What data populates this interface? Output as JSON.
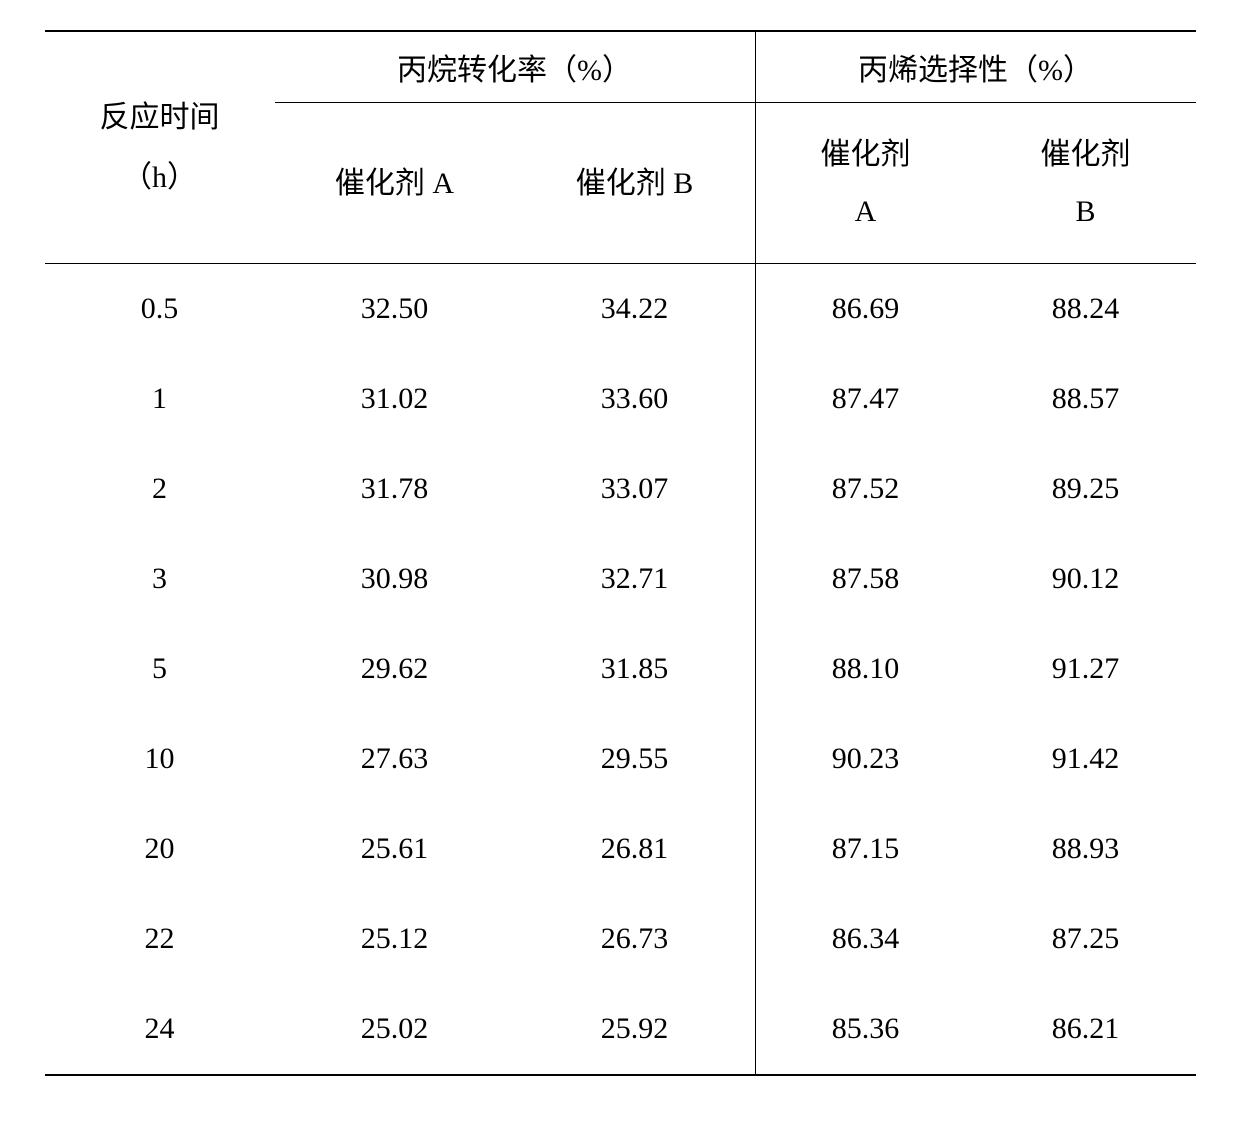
{
  "table": {
    "type": "table",
    "background_color": "#ffffff",
    "text_color": "#000000",
    "border_color": "#000000",
    "font_family": "SimSun",
    "font_size_pt": 22,
    "headers": {
      "row1": {
        "time_label_line1": "反应时间",
        "time_label_line2": "（h）",
        "conversion_label": "丙烷转化率（%）",
        "selectivity_label": "丙烯选择性（%）"
      },
      "row2": {
        "catalyst_a": "催化剂 A",
        "catalyst_b": "催化剂 B",
        "catalyst_a_line1": "催化剂",
        "catalyst_a_line2": "A",
        "catalyst_b_line1": "催化剂",
        "catalyst_b_line2": "B"
      }
    },
    "columns": [
      "反应时间（h）",
      "催化剂 A 转化率",
      "催化剂 B 转化率",
      "催化剂 A 选择性",
      "催化剂 B 选择性"
    ],
    "rows": [
      {
        "time": "0.5",
        "conv_a": "32.50",
        "conv_b": "34.22",
        "sel_a": "86.69",
        "sel_b": "88.24"
      },
      {
        "time": "1",
        "conv_a": "31.02",
        "conv_b": "33.60",
        "sel_a": "87.47",
        "sel_b": "88.57"
      },
      {
        "time": "2",
        "conv_a": "31.78",
        "conv_b": "33.07",
        "sel_a": "87.52",
        "sel_b": "89.25"
      },
      {
        "time": "3",
        "conv_a": "30.98",
        "conv_b": "32.71",
        "sel_a": "87.58",
        "sel_b": "90.12"
      },
      {
        "time": "5",
        "conv_a": "29.62",
        "conv_b": "31.85",
        "sel_a": "88.10",
        "sel_b": "91.27"
      },
      {
        "time": "10",
        "conv_a": "27.63",
        "conv_b": "29.55",
        "sel_a": "90.23",
        "sel_b": "91.42"
      },
      {
        "time": "20",
        "conv_a": "25.61",
        "conv_b": "26.81",
        "sel_a": "87.15",
        "sel_b": "88.93"
      },
      {
        "time": "22",
        "conv_a": "25.12",
        "conv_b": "26.73",
        "sel_a": "86.34",
        "sel_b": "87.25"
      },
      {
        "time": "24",
        "conv_a": "25.02",
        "conv_b": "25.92",
        "sel_a": "85.36",
        "sel_b": "86.21"
      }
    ]
  }
}
